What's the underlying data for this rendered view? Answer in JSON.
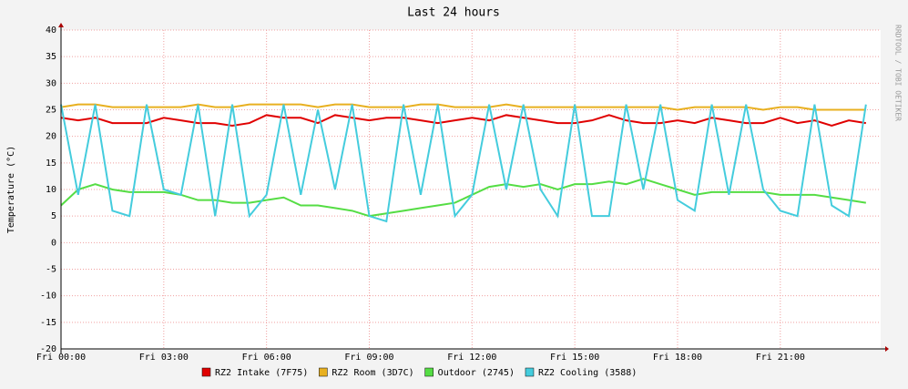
{
  "chart_data": {
    "type": "line",
    "title": "Last 24 hours",
    "y_label": "Temperature (°C)",
    "watermark": "RRDTOOL / TOBI OETIKER",
    "x": [
      0,
      0.5,
      1,
      1.5,
      2,
      2.5,
      3,
      3.5,
      4,
      4.5,
      5,
      5.5,
      6,
      6.5,
      7,
      7.5,
      8,
      8.5,
      9,
      9.5,
      10,
      10.5,
      11,
      11.5,
      12,
      12.5,
      13,
      13.5,
      14,
      14.5,
      15,
      15.5,
      16,
      16.5,
      17,
      17.5,
      18,
      18.5,
      19,
      19.5,
      20,
      20.5,
      21,
      21.5,
      22,
      22.5,
      23,
      23.5
    ],
    "xlim": [
      0,
      23.93
    ],
    "xticks": [
      {
        "value": 0,
        "label": "Fri 00:00"
      },
      {
        "value": 3,
        "label": "Fri 03:00"
      },
      {
        "value": 6,
        "label": "Fri 06:00"
      },
      {
        "value": 9,
        "label": "Fri 09:00"
      },
      {
        "value": 12,
        "label": "Fri 12:00"
      },
      {
        "value": 15,
        "label": "Fri 15:00"
      },
      {
        "value": 18,
        "label": "Fri 18:00"
      },
      {
        "value": 21,
        "label": "Fri 21:00"
      }
    ],
    "ylim": [
      -20,
      40
    ],
    "yticks": [
      -20,
      -15,
      -10,
      -5,
      0,
      5,
      10,
      15,
      20,
      25,
      30,
      35,
      40
    ],
    "grid": true,
    "series": [
      {
        "name": "RZ2 Intake (7F75)",
        "color": "#e00000",
        "values": [
          23.5,
          23,
          23.5,
          22.5,
          22.5,
          22.5,
          23.5,
          23,
          22.5,
          22.5,
          22,
          22.5,
          24,
          23.5,
          23.5,
          22.5,
          24,
          23.5,
          23,
          23.5,
          23.5,
          23,
          22.5,
          23,
          23.5,
          23,
          24,
          23.5,
          23,
          22.5,
          22.5,
          23,
          24,
          23,
          22.5,
          22.5,
          23,
          22.5,
          23.5,
          23,
          22.5,
          22.5,
          23.5,
          22.5,
          23,
          22,
          23,
          22.5
        ]
      },
      {
        "name": "RZ2 Room (3D7C)",
        "color": "#e8b020",
        "values": [
          25.5,
          26,
          26,
          25.5,
          25.5,
          25.5,
          25.5,
          25.5,
          26,
          25.5,
          25.5,
          26,
          26,
          26,
          26,
          25.5,
          26,
          26,
          25.5,
          25.5,
          25.5,
          26,
          26,
          25.5,
          25.5,
          25.5,
          26,
          25.5,
          25.5,
          25.5,
          25.5,
          25.5,
          25.5,
          25.5,
          25.5,
          25.5,
          25,
          25.5,
          25.5,
          25.5,
          25.5,
          25,
          25.5,
          25.5,
          25,
          25,
          25,
          25
        ]
      },
      {
        "name": "Outdoor (2745)",
        "color": "#55dd44",
        "values": [
          7,
          10,
          11,
          10,
          9.5,
          9.5,
          9.5,
          9,
          8,
          8,
          7.5,
          7.5,
          8,
          8.5,
          7,
          7,
          6.5,
          6,
          5,
          5.5,
          6,
          6.5,
          7,
          7.5,
          9,
          10.5,
          11,
          10.5,
          11,
          10,
          11,
          11,
          11.5,
          11,
          12,
          11,
          10,
          9,
          9.5,
          9.5,
          9.5,
          9.5,
          9,
          9,
          9,
          8.5,
          8,
          7.5
        ]
      },
      {
        "name": "RZ2 Cooling (3588)",
        "color": "#44ccdd",
        "values": [
          26,
          9,
          26,
          6,
          5,
          26,
          10,
          9,
          26,
          5,
          26,
          5,
          9,
          26,
          9,
          25,
          10,
          26,
          5,
          4,
          26,
          9,
          26,
          5,
          9,
          26,
          10,
          26,
          10,
          5,
          26,
          5,
          5,
          26,
          10,
          26,
          8,
          6,
          26,
          9,
          26,
          10,
          6,
          5,
          26,
          7,
          5,
          26
        ]
      }
    ]
  }
}
